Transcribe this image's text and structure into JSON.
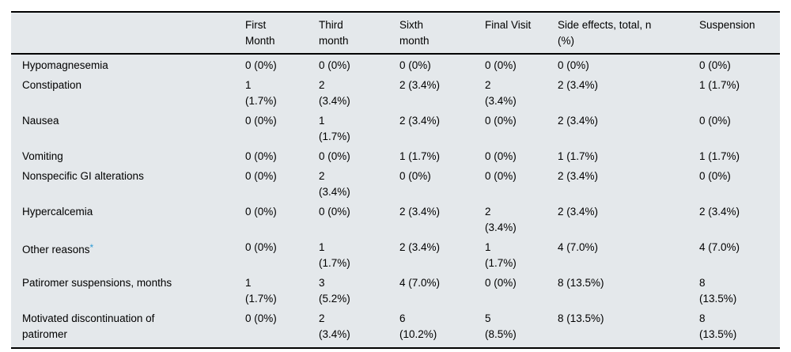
{
  "colors": {
    "page_background": "#ffffff",
    "table_background": "#e4e8eb",
    "rule": "#000000",
    "text": "#000000",
    "asterisk": "#2f9bd6"
  },
  "table": {
    "columns": [
      {
        "key": "row-label",
        "label": ""
      },
      {
        "key": "first-month",
        "label": "First\nMonth"
      },
      {
        "key": "third-month",
        "label": "Third\nmonth"
      },
      {
        "key": "sixth-month",
        "label": "Sixth\nmonth"
      },
      {
        "key": "final-visit",
        "label": "Final Visit"
      },
      {
        "key": "side-effects-total",
        "label": "Side effects, total, n\n(%)"
      },
      {
        "key": "suspension",
        "label": "Suspension"
      }
    ],
    "rows": [
      {
        "label": "Hypomagnesemia",
        "values": [
          "0 (0%)",
          "0 (0%)",
          "0 (0%)",
          "0 (0%)",
          "0 (0%)",
          "0 (0%)"
        ]
      },
      {
        "label": "Constipation",
        "values": [
          "1\n(1.7%)",
          "2\n(3.4%)",
          "2 (3.4%)",
          "2\n(3.4%)",
          "2 (3.4%)",
          "1 (1.7%)"
        ]
      },
      {
        "label": "Nausea",
        "values": [
          "0 (0%)",
          "1\n(1.7%)",
          "2 (3.4%)",
          "0 (0%)",
          "2 (3.4%)",
          "0 (0%)"
        ]
      },
      {
        "label": "Vomiting",
        "values": [
          "0 (0%)",
          "0 (0%)",
          "1 (1.7%)",
          "0 (0%)",
          "1 (1.7%)",
          "1 (1.7%)"
        ]
      },
      {
        "label": "Nonspecific GI alterations",
        "values": [
          "0 (0%)",
          "2\n(3.4%)",
          "0 (0%)",
          "0 (0%)",
          "2 (3.4%)",
          "0 (0%)"
        ]
      },
      {
        "label": "Hypercalcemia",
        "values": [
          "0 (0%)",
          "0 (0%)",
          "2 (3.4%)",
          "2\n(3.4%)",
          "2 (3.4%)",
          "2 (3.4%)"
        ]
      },
      {
        "label": "Other reasons",
        "label_note": "*",
        "values": [
          "0 (0%)",
          "1\n(1.7%)",
          "2 (3.4%)",
          "1\n(1.7%)",
          "4 (7.0%)",
          "4 (7.0%)"
        ]
      },
      {
        "label": "Patiromer suspensions, months",
        "values": [
          "1\n(1.7%)",
          "3\n(5.2%)",
          "4 (7.0%)",
          "0 (0%)",
          "8 (13.5%)",
          "8\n(13.5%)"
        ]
      },
      {
        "label": "Motivated discontinuation of\npatiromer",
        "values": [
          "0 (0%)",
          "2\n(3.4%)",
          "6\n(10.2%)",
          "5\n(8.5%)",
          "8 (13.5%)",
          "8\n(13.5%)"
        ]
      }
    ]
  }
}
